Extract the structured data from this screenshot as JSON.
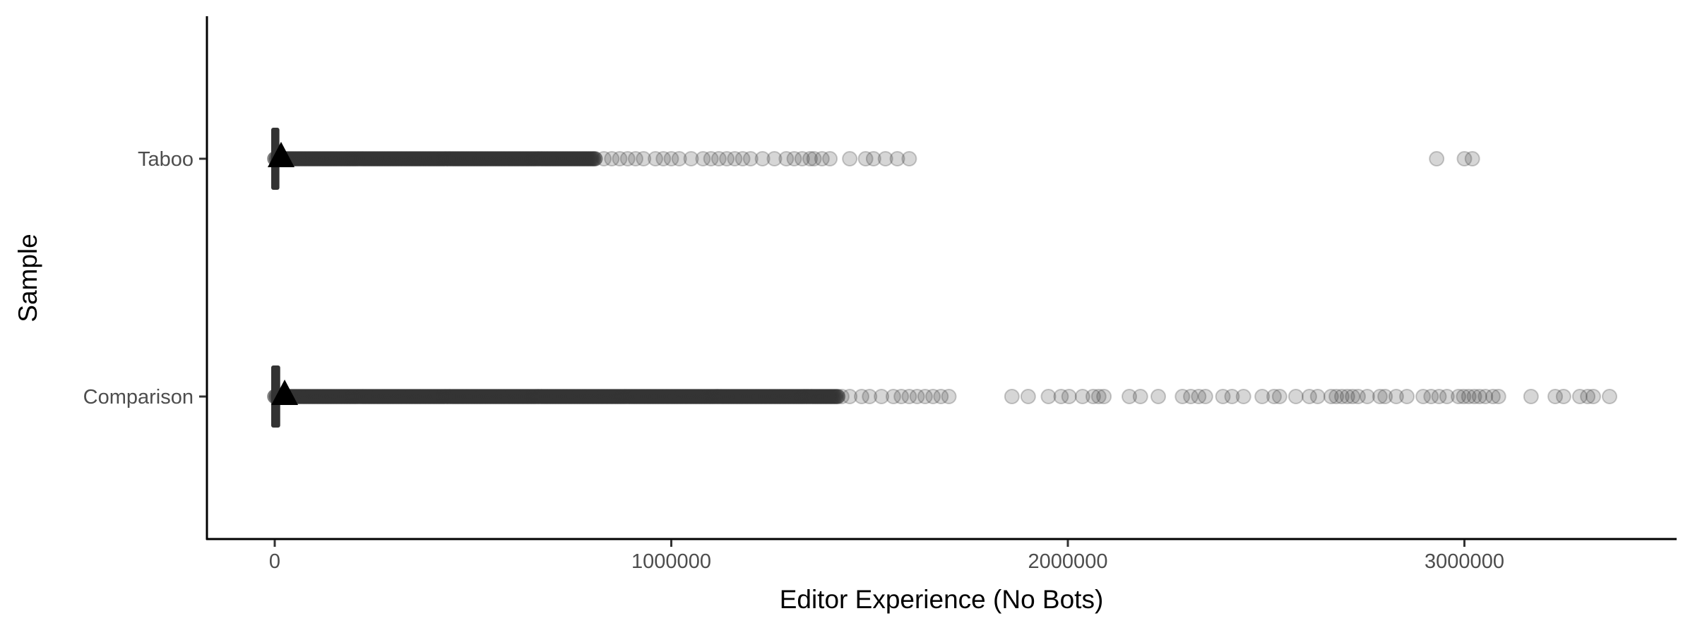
{
  "chart_data": {
    "type": "scatter",
    "subtype": "jittered strip plot with boxplot and mean marker",
    "xlabel": "Editor Experience (No Bots)",
    "ylabel": "Sample",
    "xlim": [
      -160000,
      3500000
    ],
    "x_ticks": [
      0,
      1000000,
      2000000,
      3000000
    ],
    "x_tick_labels": [
      "0",
      "1000000",
      "2000000",
      "3000000"
    ],
    "categories": [
      "Taboo",
      "Comparison"
    ],
    "grid": false,
    "point_color": "#333333",
    "point_alpha": 0.2,
    "mean_marker": "triangle",
    "series": [
      {
        "category": "Taboo",
        "mean": 16000,
        "box_range": [
          0,
          10000
        ],
        "dense_range": [
          0,
          810000
        ],
        "points": [
          830000,
          850000,
          870000,
          890000,
          910000,
          930000,
          960000,
          980000,
          1000000,
          1020000,
          1050000,
          1080000,
          1100000,
          1120000,
          1140000,
          1160000,
          1180000,
          1200000,
          1230000,
          1260000,
          1290000,
          1310000,
          1330000,
          1350000,
          1360000,
          1380000,
          1400000,
          1450000,
          1490000,
          1510000,
          1540000,
          1570000,
          1600000,
          2930000,
          3000000,
          3020000
        ]
      },
      {
        "category": "Comparison",
        "mean": 25000,
        "box_range": [
          0,
          12000
        ],
        "dense_range": [
          0,
          1420000
        ],
        "points": [
          1430000,
          1450000,
          1480000,
          1500000,
          1530000,
          1560000,
          1580000,
          1600000,
          1620000,
          1640000,
          1660000,
          1680000,
          1700000,
          1859000,
          1900000,
          1951000,
          1983000,
          2003000,
          2037000,
          2064000,
          2078000,
          2091000,
          2155000,
          2183000,
          2228000,
          2289000,
          2310000,
          2330000,
          2347000,
          2391000,
          2414000,
          2443000,
          2490000,
          2520000,
          2534000,
          2575000,
          2609000,
          2630000,
          2664000,
          2677000,
          2691000,
          2705000,
          2718000,
          2732000,
          2755000,
          2787000,
          2800000,
          2828000,
          2855000,
          2896000,
          2916000,
          2936000,
          2956000,
          2985000,
          2998000,
          3011000,
          3025000,
          3038000,
          3053000,
          3072000,
          3086000,
          3168000,
          3229000,
          3250000,
          3291000,
          3311000,
          3325000,
          3366000
        ]
      }
    ]
  }
}
